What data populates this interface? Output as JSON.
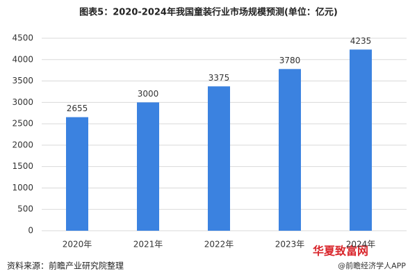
{
  "chart_data": {
    "type": "bar",
    "title": "图表5：2020-2024年我国童装行业市场规模预测(单位：亿元)",
    "categories": [
      "2020年",
      "2021年",
      "2022年",
      "2023年",
      "2024年"
    ],
    "values": [
      2655,
      3000,
      3375,
      3780,
      4235
    ],
    "color": "#3b82e0",
    "ylim": [
      0,
      4500
    ],
    "yticks": [
      0,
      500,
      1000,
      1500,
      2000,
      2500,
      3000,
      3500,
      4000,
      4500
    ],
    "grid": true,
    "source": "资料来源：前瞻产业研究院整理",
    "watermarks": [
      "华夏致富网",
      "@前瞻经济学人APP"
    ]
  }
}
